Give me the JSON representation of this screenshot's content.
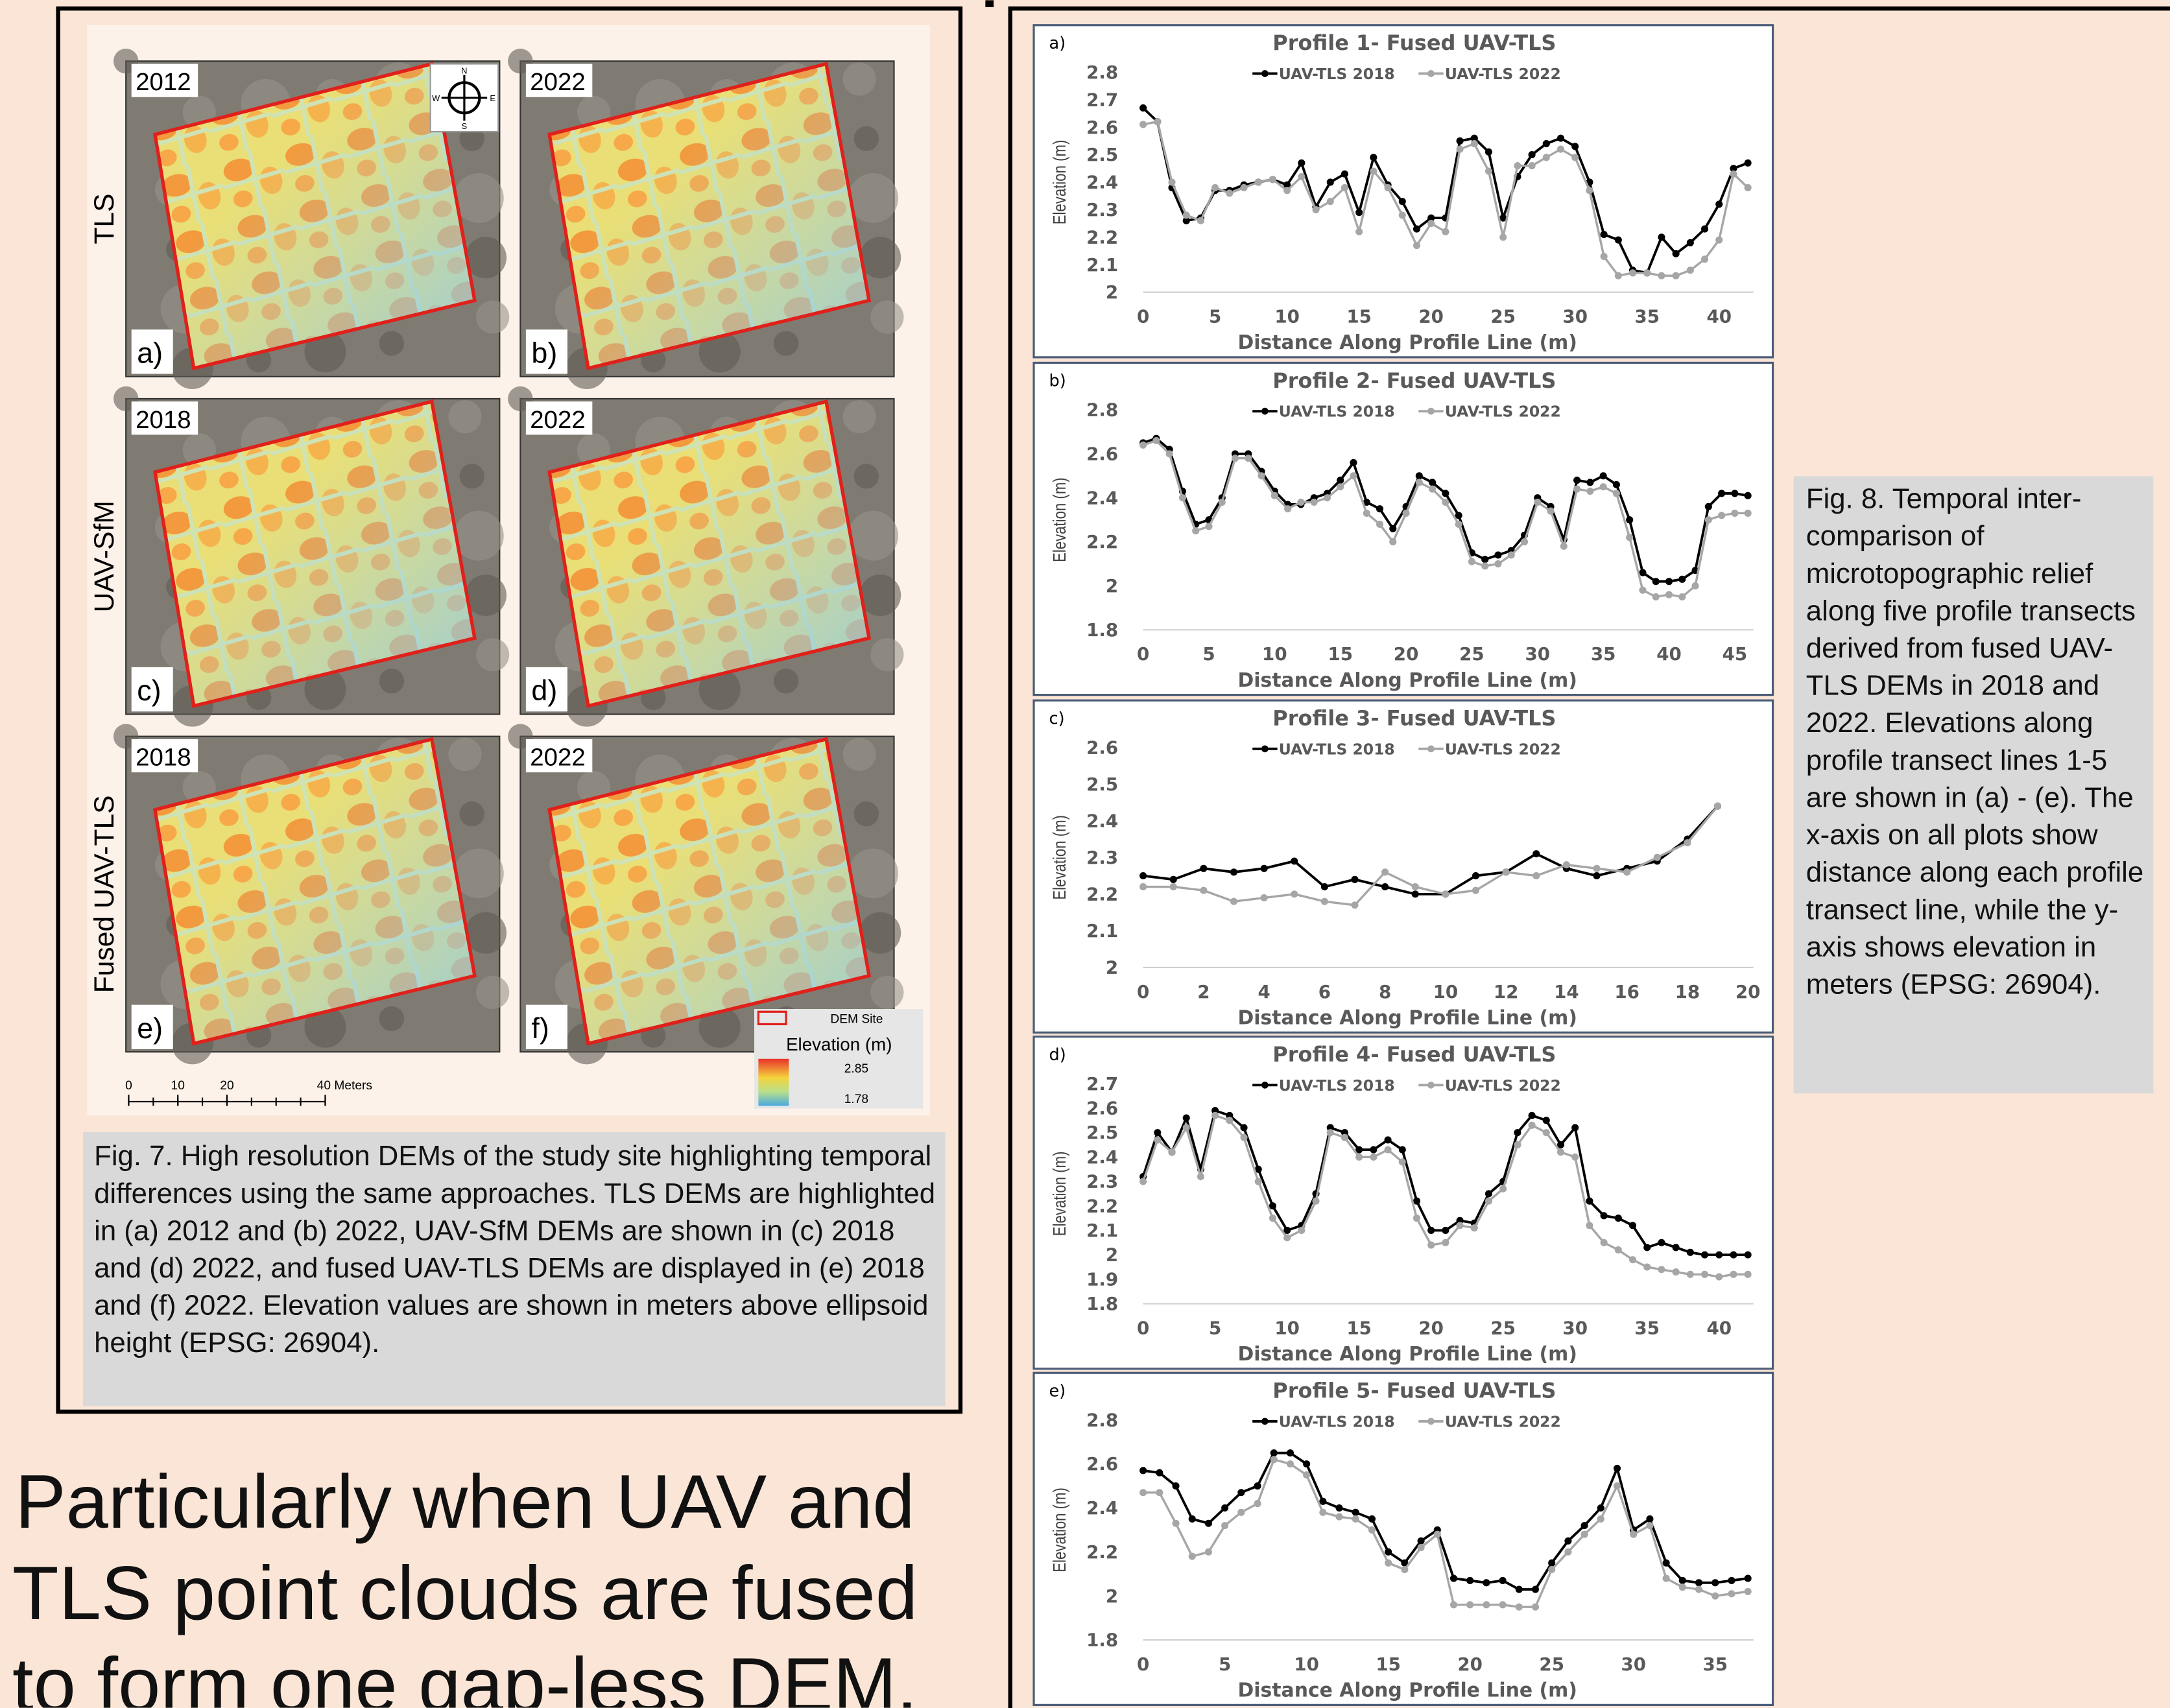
{
  "fig7": {
    "row_labels": [
      "TLS",
      "UAV-SfM",
      "Fused UAV-TLS"
    ],
    "panels": [
      {
        "year": "2012",
        "label": "a)"
      },
      {
        "year": "2022",
        "label": "b)"
      },
      {
        "year": "2018",
        "label": "c)"
      },
      {
        "year": "2022",
        "label": "d)"
      },
      {
        "year": "2018",
        "label": "e)"
      },
      {
        "year": "2022",
        "label": "f)"
      }
    ],
    "compass": [
      "N",
      "E",
      "S",
      "W"
    ],
    "legend": {
      "site": "DEM Site",
      "title": "Elevation (m)",
      "high": 2.85,
      "low": 1.78
    },
    "scale_bar": {
      "ticks": [
        0,
        10,
        20
      ],
      "end": 40,
      "end_label": "40 Meters"
    },
    "caption": "Fig. 7. High resolution DEMs of the study site highlighting temporal differences using the same approaches. TLS DEMs are highlighted in (a) 2012 and (b) 2022, UAV-SfM DEMs are shown in (c) 2018 and (d) 2022, and fused UAV-TLS DEMs are displayed in (e) 2018 and (f) 2022. Elevation values are shown in meters above ellipsoid height (EPSG: 26904)."
  },
  "body_text": "Particularly when UAV and TLS point clouds are fused to form one gap-less DEM.",
  "fig8_caption": "Fig. 8. Temporal inter-comparison of microtopographic relief along five profile transects derived from fused UAV-TLS DEMs in 2018 and 2022. Elevations along profile transect lines 1-5 are shown in (a) - (e). The x-axis on all plots show distance along each profile transect line, while the y-axis shows elevation in meters (EPSG: 26904).",
  "chart_data": [
    {
      "type": "line",
      "panel_label": "a)",
      "title": "Profile 1- Fused UAV-TLS",
      "x_label": "Distance Along Profile Line (m)",
      "y_label": "Elevation (m)",
      "xlim": [
        0,
        42
      ],
      "xticks": [
        0,
        5,
        10,
        15,
        20,
        25,
        30,
        35,
        40
      ],
      "ylim": [
        2,
        2.8
      ],
      "yticks": [
        2,
        2.1,
        2.2,
        2.3,
        2.4,
        2.5,
        2.6,
        2.7,
        2.8
      ],
      "x": [
        0,
        1,
        2,
        3,
        4,
        5,
        6,
        7,
        8,
        9,
        10,
        11,
        12,
        13,
        14,
        15,
        16,
        17,
        18,
        19,
        20,
        21,
        22,
        23,
        24,
        25,
        26,
        27,
        28,
        29,
        30,
        31,
        32,
        33,
        34,
        35,
        36,
        37,
        38,
        39,
        40,
        41,
        42
      ],
      "series": [
        {
          "name": "UAV-TLS 2018",
          "color": "#000000",
          "values": [
            2.67,
            2.62,
            2.38,
            2.26,
            2.27,
            2.37,
            2.37,
            2.39,
            2.4,
            2.41,
            2.39,
            2.47,
            2.31,
            2.4,
            2.43,
            2.29,
            2.49,
            2.39,
            2.33,
            2.23,
            2.27,
            2.27,
            2.55,
            2.56,
            2.51,
            2.27,
            2.42,
            2.5,
            2.54,
            2.56,
            2.53,
            2.4,
            2.21,
            2.19,
            2.08,
            2.07,
            2.2,
            2.14,
            2.18,
            2.23,
            2.32,
            2.45,
            2.47
          ]
        },
        {
          "name": "UAV-TLS 2022",
          "color": "#a6a6a6",
          "values": [
            2.61,
            2.62,
            2.4,
            2.28,
            2.26,
            2.38,
            2.36,
            2.38,
            2.4,
            2.41,
            2.37,
            2.42,
            2.3,
            2.33,
            2.38,
            2.22,
            2.44,
            2.38,
            2.28,
            2.17,
            2.25,
            2.22,
            2.52,
            2.54,
            2.44,
            2.2,
            2.46,
            2.46,
            2.49,
            2.52,
            2.49,
            2.37,
            2.13,
            2.06,
            2.07,
            2.07,
            2.06,
            2.06,
            2.08,
            2.12,
            2.19,
            2.43,
            2.38
          ]
        }
      ]
    },
    {
      "type": "line",
      "panel_label": "b)",
      "title": "Profile 2- Fused UAV-TLS",
      "x_label": "Distance Along Profile Line (m)",
      "y_label": "Elevation (m)",
      "xlim": [
        0,
        46
      ],
      "xticks": [
        0,
        5,
        10,
        15,
        20,
        25,
        30,
        35,
        40,
        45
      ],
      "ylim": [
        1.8,
        2.8
      ],
      "yticks": [
        1.8,
        2,
        2.2,
        2.4,
        2.6,
        2.8
      ],
      "x": [
        0,
        1,
        2,
        3,
        4,
        5,
        6,
        7,
        8,
        9,
        10,
        11,
        12,
        13,
        14,
        15,
        16,
        17,
        18,
        19,
        20,
        21,
        22,
        23,
        24,
        25,
        26,
        27,
        28,
        29,
        30,
        31,
        32,
        33,
        34,
        35,
        36,
        37,
        38,
        39,
        40,
        41,
        42,
        43,
        44,
        45,
        46
      ],
      "series": [
        {
          "name": "UAV-TLS 2018",
          "color": "#000000",
          "values": [
            2.65,
            2.67,
            2.62,
            2.43,
            2.28,
            2.3,
            2.4,
            2.6,
            2.6,
            2.52,
            2.43,
            2.37,
            2.37,
            2.4,
            2.42,
            2.48,
            2.56,
            2.38,
            2.35,
            2.26,
            2.36,
            2.5,
            2.47,
            2.42,
            2.32,
            2.15,
            2.12,
            2.14,
            2.16,
            2.23,
            2.4,
            2.36,
            2.21,
            2.48,
            2.47,
            2.5,
            2.46,
            2.3,
            2.06,
            2.02,
            2.02,
            2.03,
            2.07,
            2.36,
            2.42,
            2.42,
            2.41
          ]
        },
        {
          "name": "UAV-TLS 2022",
          "color": "#a6a6a6",
          "values": [
            2.64,
            2.66,
            2.6,
            2.4,
            2.25,
            2.27,
            2.38,
            2.58,
            2.58,
            2.5,
            2.41,
            2.35,
            2.38,
            2.38,
            2.4,
            2.45,
            2.5,
            2.33,
            2.28,
            2.2,
            2.33,
            2.47,
            2.44,
            2.38,
            2.28,
            2.11,
            2.09,
            2.1,
            2.14,
            2.2,
            2.38,
            2.34,
            2.18,
            2.44,
            2.43,
            2.45,
            2.42,
            2.22,
            1.98,
            1.95,
            1.96,
            1.95,
            2.0,
            2.3,
            2.32,
            2.33,
            2.33
          ]
        }
      ]
    },
    {
      "type": "line",
      "panel_label": "c)",
      "title": "Profile 3- Fused UAV-TLS",
      "x_label": "Distance Along Profile Line (m)",
      "y_label": "Elevation (m)",
      "xlim": [
        0,
        20
      ],
      "xticks": [
        0,
        2,
        4,
        6,
        8,
        10,
        12,
        14,
        16,
        18,
        20
      ],
      "ylim": [
        2,
        2.6
      ],
      "yticks": [
        2,
        2.1,
        2.2,
        2.3,
        2.4,
        2.5,
        2.6
      ],
      "x": [
        0,
        1,
        2,
        3,
        4,
        5,
        6,
        7,
        8,
        9,
        10,
        11,
        12,
        13,
        14,
        15,
        16,
        17,
        18,
        19
      ],
      "series": [
        {
          "name": "UAV-TLS 2018",
          "color": "#000000",
          "values": [
            2.25,
            2.24,
            2.27,
            2.26,
            2.27,
            2.29,
            2.22,
            2.24,
            2.22,
            2.2,
            2.2,
            2.25,
            2.26,
            2.31,
            2.27,
            2.25,
            2.27,
            2.29,
            2.35,
            2.44
          ]
        },
        {
          "name": "UAV-TLS 2022",
          "color": "#a6a6a6",
          "values": [
            2.22,
            2.22,
            2.21,
            2.18,
            2.19,
            2.2,
            2.18,
            2.17,
            2.26,
            2.22,
            2.2,
            2.21,
            2.26,
            2.25,
            2.28,
            2.27,
            2.26,
            2.3,
            2.34,
            2.44
          ]
        }
      ]
    },
    {
      "type": "line",
      "panel_label": "d)",
      "title": "Profile 4- Fused UAV-TLS",
      "x_label": "Distance Along Profile Line (m)",
      "y_label": "Elevation (m)",
      "xlim": [
        0,
        42
      ],
      "xticks": [
        0,
        5,
        10,
        15,
        20,
        25,
        30,
        35,
        40
      ],
      "ylim": [
        1.8,
        2.7
      ],
      "yticks": [
        1.8,
        1.9,
        2,
        2.1,
        2.2,
        2.3,
        2.4,
        2.5,
        2.6,
        2.7
      ],
      "x": [
        0,
        1,
        2,
        3,
        4,
        5,
        6,
        7,
        8,
        9,
        10,
        11,
        12,
        13,
        14,
        15,
        16,
        17,
        18,
        19,
        20,
        21,
        22,
        23,
        24,
        25,
        26,
        27,
        28,
        29,
        30,
        31,
        32,
        33,
        34,
        35,
        36,
        37,
        38,
        39,
        40,
        41,
        42
      ],
      "series": [
        {
          "name": "UAV-TLS 2018",
          "color": "#000000",
          "values": [
            2.32,
            2.5,
            2.42,
            2.56,
            2.35,
            2.59,
            2.57,
            2.52,
            2.35,
            2.2,
            2.1,
            2.12,
            2.25,
            2.52,
            2.5,
            2.43,
            2.43,
            2.47,
            2.43,
            2.22,
            2.1,
            2.1,
            2.14,
            2.13,
            2.25,
            2.3,
            2.5,
            2.57,
            2.55,
            2.45,
            2.52,
            2.22,
            2.16,
            2.15,
            2.12,
            2.03,
            2.05,
            2.03,
            2.01,
            2.0,
            2.0,
            2.0,
            2.0
          ]
        },
        {
          "name": "UAV-TLS 2022",
          "color": "#a6a6a6",
          "values": [
            2.3,
            2.47,
            2.42,
            2.52,
            2.32,
            2.57,
            2.55,
            2.48,
            2.3,
            2.15,
            2.07,
            2.1,
            2.22,
            2.5,
            2.48,
            2.4,
            2.4,
            2.43,
            2.38,
            2.15,
            2.04,
            2.05,
            2.12,
            2.11,
            2.22,
            2.27,
            2.45,
            2.53,
            2.5,
            2.42,
            2.4,
            2.12,
            2.05,
            2.02,
            1.98,
            1.95,
            1.94,
            1.93,
            1.92,
            1.92,
            1.91,
            1.92,
            1.92
          ]
        }
      ]
    },
    {
      "type": "line",
      "panel_label": "e)",
      "title": "Profile 5- Fused UAV-TLS",
      "x_label": "Distance Along Profile Line (m)",
      "y_label": "Elevation (m)",
      "xlim": [
        0,
        37
      ],
      "xticks": [
        0,
        5,
        10,
        15,
        20,
        25,
        30,
        35
      ],
      "ylim": [
        1.8,
        2.8
      ],
      "yticks": [
        1.8,
        2,
        2.2,
        2.4,
        2.6,
        2.8
      ],
      "x": [
        0,
        1,
        2,
        3,
        4,
        5,
        6,
        7,
        8,
        9,
        10,
        11,
        12,
        13,
        14,
        15,
        16,
        17,
        18,
        19,
        20,
        21,
        22,
        23,
        24,
        25,
        26,
        27,
        28,
        29,
        30,
        31,
        32,
        33,
        34,
        35,
        36,
        37
      ],
      "series": [
        {
          "name": "UAV-TLS 2018",
          "color": "#000000",
          "values": [
            2.57,
            2.56,
            2.5,
            2.35,
            2.33,
            2.4,
            2.47,
            2.5,
            2.65,
            2.65,
            2.6,
            2.43,
            2.4,
            2.38,
            2.35,
            2.2,
            2.15,
            2.25,
            2.3,
            2.08,
            2.07,
            2.06,
            2.07,
            2.03,
            2.03,
            2.15,
            2.25,
            2.32,
            2.4,
            2.58,
            2.3,
            2.35,
            2.15,
            2.07,
            2.06,
            2.06,
            2.07,
            2.08
          ]
        },
        {
          "name": "UAV-TLS 2022",
          "color": "#a6a6a6",
          "values": [
            2.47,
            2.47,
            2.33,
            2.18,
            2.2,
            2.32,
            2.38,
            2.42,
            2.62,
            2.6,
            2.55,
            2.38,
            2.36,
            2.35,
            2.3,
            2.15,
            2.12,
            2.22,
            2.28,
            1.96,
            1.96,
            1.96,
            1.96,
            1.95,
            1.95,
            2.12,
            2.2,
            2.28,
            2.35,
            2.5,
            2.28,
            2.32,
            2.08,
            2.04,
            2.03,
            2.0,
            2.01,
            2.02
          ]
        }
      ]
    }
  ]
}
